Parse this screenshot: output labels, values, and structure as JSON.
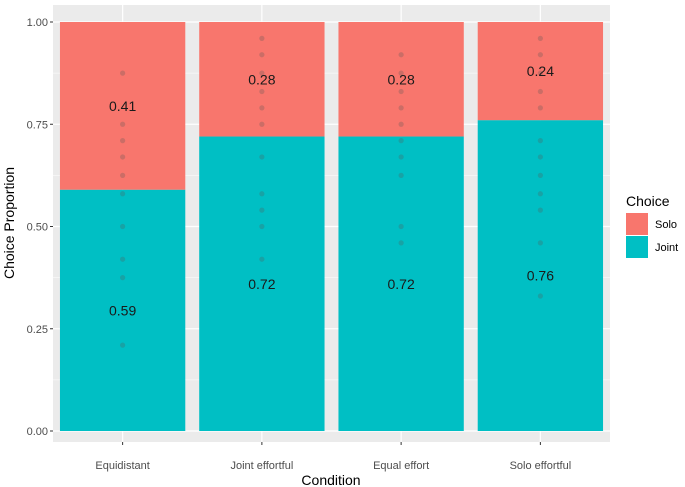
{
  "chart_data": {
    "type": "bar",
    "stacked": true,
    "categories": [
      "Equidistant",
      "Joint effortful",
      "Equal effort",
      "Solo effortful"
    ],
    "series": [
      {
        "name": "Joint",
        "values": [
          0.59,
          0.72,
          0.72,
          0.76
        ],
        "labels": [
          "0.59",
          "0.72",
          "0.72",
          "0.76"
        ],
        "color": "#00BFC4"
      },
      {
        "name": "Solo",
        "values": [
          0.41,
          0.28,
          0.28,
          0.24
        ],
        "labels": [
          "0.41",
          "0.28",
          "0.28",
          "0.24"
        ],
        "color": "#F8766D"
      }
    ],
    "points": [
      [
        0.21,
        0.375,
        0.42,
        0.5,
        0.58,
        0.625,
        0.67,
        0.71,
        0.75,
        0.875
      ],
      [
        0.42,
        0.5,
        0.54,
        0.58,
        0.67,
        0.75,
        0.79,
        0.83,
        0.875,
        0.92,
        0.96
      ],
      [
        0.46,
        0.5,
        0.625,
        0.67,
        0.71,
        0.75,
        0.79,
        0.83,
        0.875,
        0.92
      ],
      [
        0.33,
        0.46,
        0.54,
        0.58,
        0.625,
        0.67,
        0.71,
        0.79,
        0.83,
        0.875,
        0.92,
        0.96
      ]
    ],
    "xlabel": "Condition",
    "ylabel": "Choice Proportion",
    "ylim": [
      0,
      1
    ],
    "yticks": [
      0,
      0.25,
      0.5,
      0.75,
      1
    ],
    "ytick_labels": [
      "0.00",
      "0.25",
      "0.50",
      "0.75",
      "1.00"
    ],
    "grid": true,
    "legend": {
      "title": "Choice",
      "placement": "right",
      "entries": [
        {
          "label": "Solo",
          "color": "#F8766D"
        },
        {
          "label": "Joint",
          "color": "#00BFC4"
        }
      ]
    },
    "colors": {
      "panel": "#EBEBEB",
      "grid": "#FFFFFF",
      "point": "#555555"
    }
  }
}
